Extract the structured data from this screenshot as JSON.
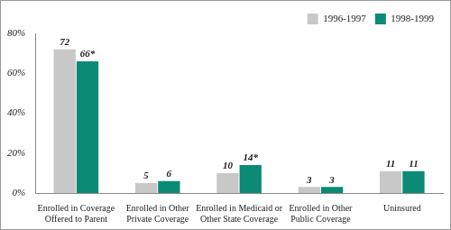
{
  "chart_data": {
    "type": "bar",
    "categories": [
      "Enrolled in Coverage Offered to Parent",
      "Enrolled in Other Private Coverage",
      "Enrolled in Medicaid or Other State Coverage",
      "Enrolled in Other Public Coverage",
      "Uninsured"
    ],
    "series": [
      {
        "name": "1996-1997",
        "color": "#c8c8c8",
        "values": [
          72,
          5,
          10,
          3,
          11
        ]
      },
      {
        "name": "1998-1999",
        "color": "#0b8a76",
        "values": [
          66,
          6,
          14,
          3,
          11
        ],
        "value_labels": [
          "66*",
          "6",
          "14*",
          "3",
          "11"
        ]
      }
    ],
    "ylim": [
      0,
      80
    ],
    "yticks": [
      {
        "value": 0,
        "label": "0%"
      },
      {
        "value": 20,
        "label": "20%"
      },
      {
        "value": 40,
        "label": "40%"
      },
      {
        "value": 60,
        "label": "60%"
      },
      {
        "value": 80,
        "label": "80%"
      }
    ],
    "grid": false,
    "legend": "top-right",
    "data_labels": true
  }
}
